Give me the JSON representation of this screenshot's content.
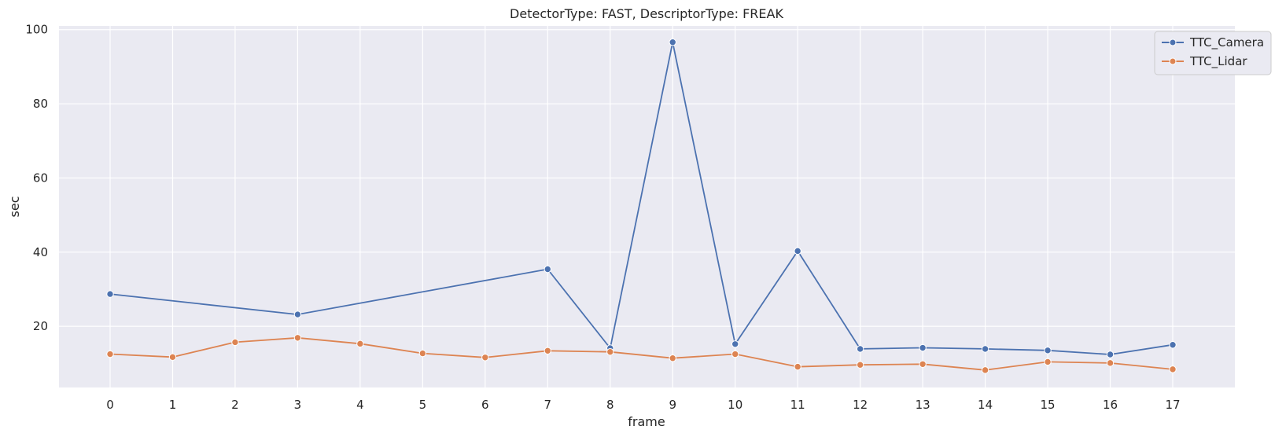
{
  "chart_data": {
    "type": "line",
    "title": "DetectorType: FAST, DescriptorType: FREAK",
    "xlabel": "frame",
    "ylabel": "sec",
    "categories": [
      "0",
      "1",
      "2",
      "3",
      "4",
      "5",
      "6",
      "7",
      "8",
      "9",
      "10",
      "11",
      "12",
      "13",
      "14",
      "15",
      "16",
      "17"
    ],
    "ylim": [
      3.5,
      101
    ],
    "yticks": [
      20,
      40,
      60,
      80,
      100
    ],
    "grid": true,
    "legend_position": "top-right",
    "series": [
      {
        "name": "TTC_Camera",
        "color": "#4c72b0",
        "points": [
          {
            "x": 0,
            "y": 28.7
          },
          {
            "x": 3,
            "y": 23.2
          },
          {
            "x": 7,
            "y": 35.4
          },
          {
            "x": 8,
            "y": 14.1
          },
          {
            "x": 9,
            "y": 96.6
          },
          {
            "x": 10,
            "y": 15.2
          },
          {
            "x": 11,
            "y": 40.3
          },
          {
            "x": 12,
            "y": 13.9
          },
          {
            "x": 13,
            "y": 14.2
          },
          {
            "x": 14,
            "y": 13.9
          },
          {
            "x": 15,
            "y": 13.5
          },
          {
            "x": 16,
            "y": 12.4
          },
          {
            "x": 17,
            "y": 15.0
          }
        ]
      },
      {
        "name": "TTC_Lidar",
        "color": "#dd8452",
        "points": [
          {
            "x": 0,
            "y": 12.5
          },
          {
            "x": 1,
            "y": 11.7
          },
          {
            "x": 2,
            "y": 15.7
          },
          {
            "x": 3,
            "y": 16.9
          },
          {
            "x": 4,
            "y": 15.3
          },
          {
            "x": 5,
            "y": 12.7
          },
          {
            "x": 6,
            "y": 11.6
          },
          {
            "x": 7,
            "y": 13.4
          },
          {
            "x": 8,
            "y": 13.1
          },
          {
            "x": 9,
            "y": 11.4
          },
          {
            "x": 10,
            "y": 12.5
          },
          {
            "x": 11,
            "y": 9.1
          },
          {
            "x": 12,
            "y": 9.6
          },
          {
            "x": 13,
            "y": 9.8
          },
          {
            "x": 14,
            "y": 8.2
          },
          {
            "x": 15,
            "y": 10.4
          },
          {
            "x": 16,
            "y": 10.1
          },
          {
            "x": 17,
            "y": 8.4
          }
        ]
      }
    ]
  }
}
